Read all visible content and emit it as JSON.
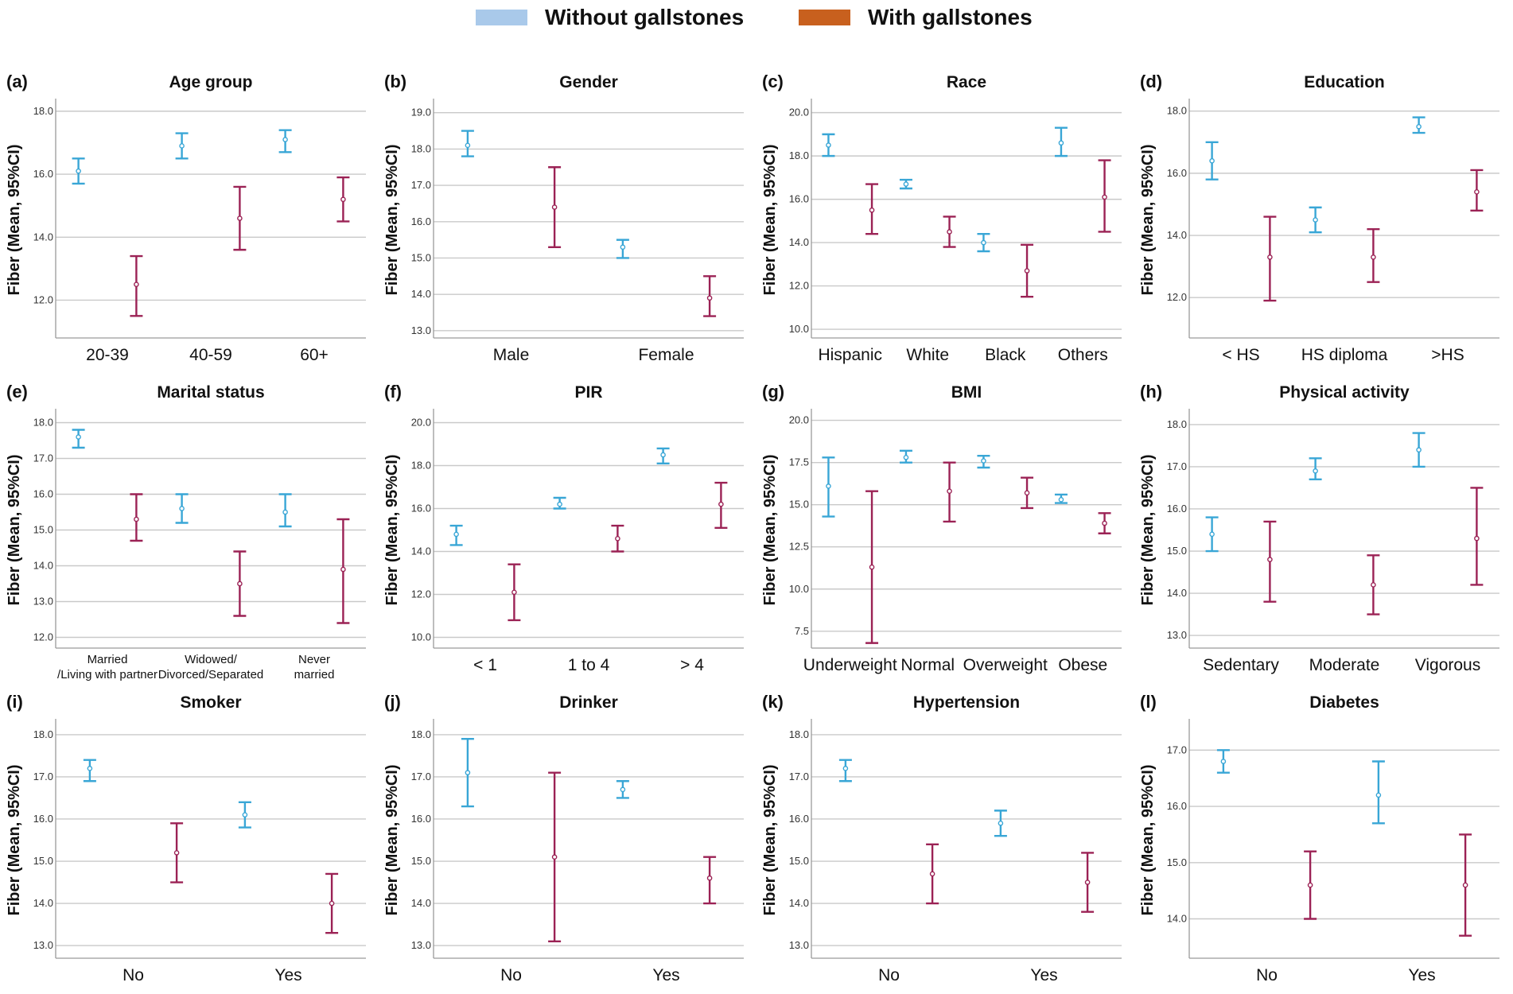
{
  "legend": {
    "without_label": "Without gallstones",
    "with_label": "With gallstones",
    "without_color": "#a9c9ea",
    "with_color": "#c8601e"
  },
  "colors": {
    "without": "#39a6d6",
    "with": "#9b2255"
  },
  "chart_data": [
    {
      "type": "errorbar",
      "panel": "(a)",
      "title": "Age group",
      "ylabel": "Fiber (Mean, 95%CI)",
      "ylim": [
        10.8,
        18.3
      ],
      "yticks": [
        12.0,
        14.0,
        16.0,
        18.0
      ],
      "categories": [
        "20-39",
        "40-59",
        "60+"
      ],
      "series": [
        {
          "name": "Without gallstones",
          "mean": [
            16.1,
            16.9,
            17.1
          ],
          "lower": [
            15.7,
            16.5,
            16.7
          ],
          "upper": [
            16.5,
            17.3,
            17.4
          ]
        },
        {
          "name": "With gallstones",
          "mean": [
            12.5,
            14.6,
            15.2
          ],
          "lower": [
            11.5,
            13.6,
            14.5
          ],
          "upper": [
            13.4,
            15.6,
            15.9
          ]
        }
      ]
    },
    {
      "type": "errorbar",
      "panel": "(b)",
      "title": "Gender",
      "ylabel": "Fiber (Mean, 95%CI)",
      "ylim": [
        12.8,
        19.3
      ],
      "yticks": [
        13.0,
        14.0,
        15.0,
        16.0,
        17.0,
        18.0,
        19.0
      ],
      "categories": [
        "Male",
        "Female"
      ],
      "series": [
        {
          "name": "Without gallstones",
          "mean": [
            18.1,
            15.3
          ],
          "lower": [
            17.8,
            15.0
          ],
          "upper": [
            18.5,
            15.5
          ]
        },
        {
          "name": "With gallstones",
          "mean": [
            16.4,
            13.9
          ],
          "lower": [
            15.3,
            13.4
          ],
          "upper": [
            17.5,
            14.5
          ]
        }
      ]
    },
    {
      "type": "errorbar",
      "panel": "(c)",
      "title": "Race",
      "ylabel": "Fiber (Mean, 95%CI)",
      "ylim": [
        9.6,
        20.5
      ],
      "yticks": [
        10.0,
        12.0,
        14.0,
        16.0,
        18.0,
        20.0
      ],
      "categories": [
        "Hispanic",
        "White",
        "Black",
        "Others"
      ],
      "series": [
        {
          "name": "Without gallstones",
          "mean": [
            18.5,
            16.7,
            14.0,
            18.6
          ],
          "lower": [
            18.0,
            16.5,
            13.6,
            18.0
          ],
          "upper": [
            19.0,
            16.9,
            14.4,
            19.3
          ]
        },
        {
          "name": "With gallstones",
          "mean": [
            15.5,
            14.5,
            12.7,
            16.1
          ],
          "lower": [
            14.4,
            13.8,
            11.5,
            14.5
          ],
          "upper": [
            16.7,
            15.2,
            13.9,
            17.8
          ]
        }
      ]
    },
    {
      "type": "errorbar",
      "panel": "(d)",
      "title": "Education",
      "ylabel": "Fiber (Mean, 95%CI)",
      "ylim": [
        10.7,
        18.3
      ],
      "yticks": [
        12.0,
        14.0,
        16.0,
        18.0
      ],
      "categories": [
        "< HS",
        "HS diploma",
        ">HS"
      ],
      "series": [
        {
          "name": "Without gallstones",
          "mean": [
            16.4,
            14.5,
            17.5
          ],
          "lower": [
            15.8,
            14.1,
            17.3
          ],
          "upper": [
            17.0,
            14.9,
            17.8
          ]
        },
        {
          "name": "With gallstones",
          "mean": [
            13.3,
            13.3,
            15.4
          ],
          "lower": [
            11.9,
            12.5,
            14.8
          ],
          "upper": [
            14.6,
            14.2,
            16.1
          ]
        }
      ]
    },
    {
      "type": "errorbar",
      "panel": "(e)",
      "title": "Marital status",
      "ylabel": "Fiber (Mean, 95%CI)",
      "ylim": [
        11.7,
        18.3
      ],
      "yticks": [
        12.0,
        13.0,
        14.0,
        15.0,
        16.0,
        17.0,
        18.0
      ],
      "categories": [
        "Married\n/Living with partner",
        "Widowed/\nDivorced/Separated",
        "Never\nmarried"
      ],
      "series": [
        {
          "name": "Without gallstones",
          "mean": [
            17.6,
            15.6,
            15.5
          ],
          "lower": [
            17.3,
            15.2,
            15.1
          ],
          "upper": [
            17.8,
            16.0,
            16.0
          ]
        },
        {
          "name": "With gallstones",
          "mean": [
            15.3,
            13.5,
            13.9
          ],
          "lower": [
            14.7,
            12.6,
            12.4
          ],
          "upper": [
            16.0,
            14.4,
            15.3
          ]
        }
      ]
    },
    {
      "type": "errorbar",
      "panel": "(f)",
      "title": "PIR",
      "ylabel": "Fiber (Mean, 95%CI)",
      "ylim": [
        9.5,
        20.5
      ],
      "yticks": [
        10.0,
        12.0,
        14.0,
        16.0,
        18.0,
        20.0
      ],
      "categories": [
        "< 1",
        "1 to 4",
        "> 4"
      ],
      "series": [
        {
          "name": "Without gallstones",
          "mean": [
            14.8,
            16.2,
            18.5
          ],
          "lower": [
            14.3,
            16.0,
            18.1
          ],
          "upper": [
            15.2,
            16.5,
            18.8
          ]
        },
        {
          "name": "With gallstones",
          "mean": [
            12.1,
            14.6,
            16.2
          ],
          "lower": [
            10.8,
            14.0,
            15.1
          ],
          "upper": [
            13.4,
            15.2,
            17.2
          ]
        }
      ]
    },
    {
      "type": "errorbar",
      "panel": "(g)",
      "title": "BMI",
      "ylabel": "Fiber (Mean, 95%CI)",
      "ylim": [
        6.5,
        20.5
      ],
      "yticks": [
        7.5,
        10.0,
        12.5,
        15.0,
        17.5,
        20.0
      ],
      "categories": [
        "Underweight",
        "Normal",
        "Overweight",
        "Obese"
      ],
      "series": [
        {
          "name": "Without gallstones",
          "mean": [
            16.1,
            17.8,
            17.6,
            15.3
          ],
          "lower": [
            14.3,
            17.5,
            17.2,
            15.1
          ],
          "upper": [
            17.8,
            18.2,
            17.9,
            15.6
          ]
        },
        {
          "name": "With gallstones",
          "mean": [
            11.3,
            15.8,
            15.7,
            13.9
          ],
          "lower": [
            6.8,
            14.0,
            14.8,
            13.3
          ],
          "upper": [
            15.8,
            17.5,
            16.6,
            14.5
          ]
        }
      ]
    },
    {
      "type": "errorbar",
      "panel": "(h)",
      "title": "Physical activity",
      "ylabel": "Fiber (Mean, 95%CI)",
      "ylim": [
        12.7,
        18.3
      ],
      "yticks": [
        13.0,
        14.0,
        15.0,
        16.0,
        17.0,
        18.0
      ],
      "categories": [
        "Sedentary",
        "Moderate",
        "Vigorous"
      ],
      "series": [
        {
          "name": "Without gallstones",
          "mean": [
            15.4,
            16.9,
            17.4
          ],
          "lower": [
            15.0,
            16.7,
            17.0
          ],
          "upper": [
            15.8,
            17.2,
            17.8
          ]
        },
        {
          "name": "With gallstones",
          "mean": [
            14.8,
            14.2,
            15.3
          ],
          "lower": [
            13.8,
            13.5,
            14.2
          ],
          "upper": [
            15.7,
            14.9,
            16.5
          ]
        }
      ]
    },
    {
      "type": "errorbar",
      "panel": "(i)",
      "title": "Smoker",
      "ylabel": "Fiber (Mean, 95%CI)",
      "ylim": [
        12.7,
        18.3
      ],
      "yticks": [
        13.0,
        14.0,
        15.0,
        16.0,
        17.0,
        18.0
      ],
      "categories": [
        "No",
        "Yes"
      ],
      "series": [
        {
          "name": "Without gallstones",
          "mean": [
            17.2,
            16.1
          ],
          "lower": [
            16.9,
            15.8
          ],
          "upper": [
            17.4,
            16.4
          ]
        },
        {
          "name": "With gallstones",
          "mean": [
            15.2,
            14.0
          ],
          "lower": [
            14.5,
            13.3
          ],
          "upper": [
            15.9,
            14.7
          ]
        }
      ]
    },
    {
      "type": "errorbar",
      "panel": "(j)",
      "title": "Drinker",
      "ylabel": "Fiber (Mean, 95%CI)",
      "ylim": [
        12.7,
        18.3
      ],
      "yticks": [
        13.0,
        14.0,
        15.0,
        16.0,
        17.0,
        18.0
      ],
      "categories": [
        "No",
        "Yes"
      ],
      "series": [
        {
          "name": "Without gallstones",
          "mean": [
            17.1,
            16.7
          ],
          "lower": [
            16.3,
            16.5
          ],
          "upper": [
            17.9,
            16.9
          ]
        },
        {
          "name": "With gallstones",
          "mean": [
            15.1,
            14.6
          ],
          "lower": [
            13.1,
            14.0
          ],
          "upper": [
            17.1,
            15.1
          ]
        }
      ]
    },
    {
      "type": "errorbar",
      "panel": "(k)",
      "title": "Hypertension",
      "ylabel": "Fiber (Mean, 95%CI)",
      "ylim": [
        12.7,
        18.3
      ],
      "yticks": [
        13.0,
        14.0,
        15.0,
        16.0,
        17.0,
        18.0
      ],
      "categories": [
        "No",
        "Yes"
      ],
      "series": [
        {
          "name": "Without gallstones",
          "mean": [
            17.2,
            15.9
          ],
          "lower": [
            16.9,
            15.6
          ],
          "upper": [
            17.4,
            16.2
          ]
        },
        {
          "name": "With gallstones",
          "mean": [
            14.7,
            14.5
          ],
          "lower": [
            14.0,
            13.8
          ],
          "upper": [
            15.4,
            15.2
          ]
        }
      ]
    },
    {
      "type": "errorbar",
      "panel": "(l)",
      "title": "Diabetes",
      "ylabel": "Fiber (Mean, 95%CI)",
      "ylim": [
        13.3,
        17.5
      ],
      "yticks": [
        14.0,
        15.0,
        16.0,
        17.0
      ],
      "categories": [
        "No",
        "Yes"
      ],
      "series": [
        {
          "name": "Without gallstones",
          "mean": [
            16.8,
            16.2
          ],
          "lower": [
            16.6,
            15.7
          ],
          "upper": [
            17.0,
            16.8
          ]
        },
        {
          "name": "With gallstones",
          "mean": [
            14.6,
            14.6
          ],
          "lower": [
            14.0,
            13.7
          ],
          "upper": [
            15.2,
            15.5
          ]
        }
      ]
    }
  ]
}
